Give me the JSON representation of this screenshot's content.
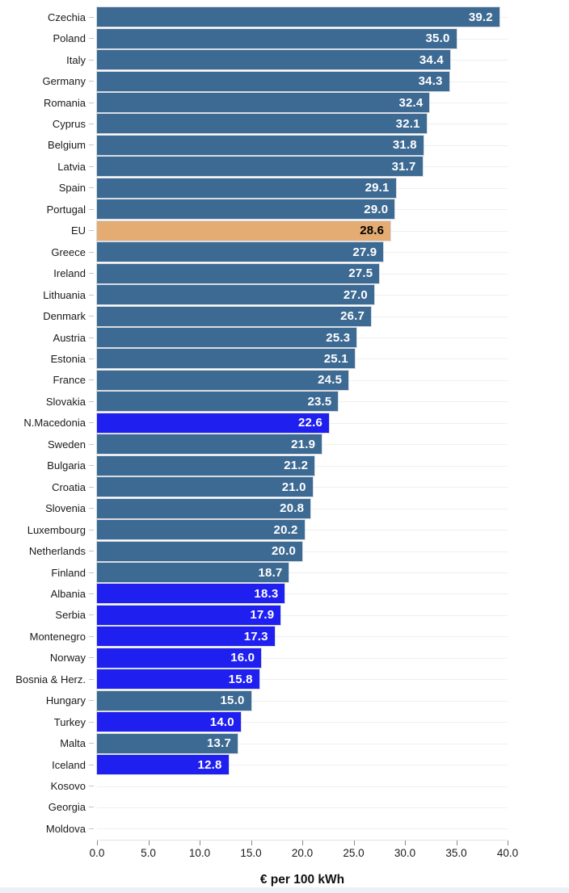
{
  "chart_data": {
    "type": "bar",
    "orientation": "horizontal",
    "title": "",
    "xlabel": "€ per 100 kWh",
    "ylabel": "",
    "xlim": [
      0,
      40
    ],
    "grid": "horizontal-row-lines",
    "legend": "none",
    "x_ticks": [
      "0.0",
      "5.0",
      "10.0",
      "15.0",
      "20.0",
      "25.0",
      "30.0",
      "35.0",
      "40.0"
    ],
    "x_tick_values": [
      0,
      5,
      10,
      15,
      20,
      25,
      30,
      35,
      40
    ],
    "colors": {
      "eu_member": "#3d6a93",
      "eu_average": "#e4ac72",
      "non_eu": "#1f1ff0",
      "value_label": "#ffffff",
      "value_label_eu_average": "#000000"
    },
    "rows": [
      {
        "country": "Czechia",
        "value": 39.2,
        "display": "39.2",
        "group": "eu_member"
      },
      {
        "country": "Poland",
        "value": 35.0,
        "display": "35.0",
        "group": "eu_member"
      },
      {
        "country": "Italy",
        "value": 34.4,
        "display": "34.4",
        "group": "eu_member"
      },
      {
        "country": "Germany",
        "value": 34.3,
        "display": "34.3",
        "group": "eu_member"
      },
      {
        "country": "Romania",
        "value": 32.4,
        "display": "32.4",
        "group": "eu_member"
      },
      {
        "country": "Cyprus",
        "value": 32.1,
        "display": "32.1",
        "group": "eu_member"
      },
      {
        "country": "Belgium",
        "value": 31.8,
        "display": "31.8",
        "group": "eu_member"
      },
      {
        "country": "Latvia",
        "value": 31.7,
        "display": "31.7",
        "group": "eu_member"
      },
      {
        "country": "Spain",
        "value": 29.1,
        "display": "29.1",
        "group": "eu_member"
      },
      {
        "country": "Portugal",
        "value": 29.0,
        "display": "29.0",
        "group": "eu_member"
      },
      {
        "country": "EU",
        "value": 28.6,
        "display": "28.6",
        "group": "eu_average"
      },
      {
        "country": "Greece",
        "value": 27.9,
        "display": "27.9",
        "group": "eu_member"
      },
      {
        "country": "Ireland",
        "value": 27.5,
        "display": "27.5",
        "group": "eu_member"
      },
      {
        "country": "Lithuania",
        "value": 27.0,
        "display": "27.0",
        "group": "eu_member"
      },
      {
        "country": "Denmark",
        "value": 26.7,
        "display": "26.7",
        "group": "eu_member"
      },
      {
        "country": "Austria",
        "value": 25.3,
        "display": "25.3",
        "group": "eu_member"
      },
      {
        "country": "Estonia",
        "value": 25.1,
        "display": "25.1",
        "group": "eu_member"
      },
      {
        "country": "France",
        "value": 24.5,
        "display": "24.5",
        "group": "eu_member"
      },
      {
        "country": "Slovakia",
        "value": 23.5,
        "display": "23.5",
        "group": "eu_member"
      },
      {
        "country": "N.Macedonia",
        "value": 22.6,
        "display": "22.6",
        "group": "non_eu"
      },
      {
        "country": "Sweden",
        "value": 21.9,
        "display": "21.9",
        "group": "eu_member"
      },
      {
        "country": "Bulgaria",
        "value": 21.2,
        "display": "21.2",
        "group": "eu_member"
      },
      {
        "country": "Croatia",
        "value": 21.0,
        "display": "21.0",
        "group": "eu_member"
      },
      {
        "country": "Slovenia",
        "value": 20.8,
        "display": "20.8",
        "group": "eu_member"
      },
      {
        "country": "Luxembourg",
        "value": 20.2,
        "display": "20.2",
        "group": "eu_member"
      },
      {
        "country": "Netherlands",
        "value": 20.0,
        "display": "20.0",
        "group": "eu_member"
      },
      {
        "country": "Finland",
        "value": 18.7,
        "display": "18.7",
        "group": "eu_member"
      },
      {
        "country": "Albania",
        "value": 18.3,
        "display": "18.3",
        "group": "non_eu"
      },
      {
        "country": "Serbia",
        "value": 17.9,
        "display": "17.9",
        "group": "non_eu"
      },
      {
        "country": "Montenegro",
        "value": 17.3,
        "display": "17.3",
        "group": "non_eu"
      },
      {
        "country": "Norway",
        "value": 16.0,
        "display": "16.0",
        "group": "non_eu"
      },
      {
        "country": "Bosnia & Herz.",
        "value": 15.8,
        "display": "15.8",
        "group": "non_eu"
      },
      {
        "country": "Hungary",
        "value": 15.0,
        "display": "15.0",
        "group": "eu_member"
      },
      {
        "country": "Turkey",
        "value": 14.0,
        "display": "14.0",
        "group": "non_eu"
      },
      {
        "country": "Malta",
        "value": 13.7,
        "display": "13.7",
        "group": "eu_member"
      },
      {
        "country": "Iceland",
        "value": 12.8,
        "display": "12.8",
        "group": "non_eu"
      },
      {
        "country": "Kosovo",
        "value": null,
        "display": null,
        "group": "none"
      },
      {
        "country": "Georgia",
        "value": null,
        "display": null,
        "group": "none"
      },
      {
        "country": "Moldova",
        "value": null,
        "display": null,
        "group": "none"
      }
    ]
  }
}
